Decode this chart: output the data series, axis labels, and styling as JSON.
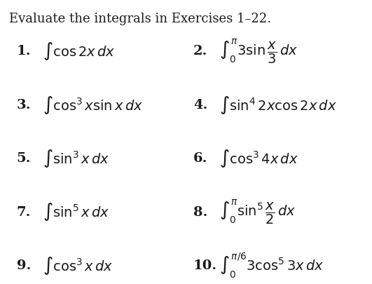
{
  "title": "Evaluate the integrals in Exercises 1–22.",
  "background_color": "#ffffff",
  "text_color": "#1a1a1a",
  "items": [
    {
      "num": "1.",
      "expr": "$\\int \\cos 2x\\, dx$",
      "col": 0,
      "row": 0
    },
    {
      "num": "2.",
      "expr": "$\\int_0^{\\pi} 3 \\sin \\dfrac{x}{3}\\, dx$",
      "col": 1,
      "row": 0
    },
    {
      "num": "3.",
      "expr": "$\\int \\cos^3 x \\sin x\\, dx$",
      "col": 0,
      "row": 1
    },
    {
      "num": "4.",
      "expr": "$\\int \\sin^4 2x \\cos 2x\\, dx$",
      "col": 1,
      "row": 1
    },
    {
      "num": "5.",
      "expr": "$\\int \\sin^3 x\\, dx$",
      "col": 0,
      "row": 2
    },
    {
      "num": "6.",
      "expr": "$\\int \\cos^3 4x\\, dx$",
      "col": 1,
      "row": 2
    },
    {
      "num": "7.",
      "expr": "$\\int \\sin^5 x\\, dx$",
      "col": 0,
      "row": 3
    },
    {
      "num": "8.",
      "expr": "$\\int_0^{\\pi} \\sin^5 \\dfrac{x}{2}\\, dx$",
      "col": 1,
      "row": 3
    },
    {
      "num": "9.",
      "expr": "$\\int \\cos^3 x\\, dx$",
      "col": 0,
      "row": 4
    },
    {
      "num": "10.",
      "expr": "$\\int_0^{\\pi/6} 3 \\cos^5 3x\\, dx$",
      "col": 1,
      "row": 4
    }
  ],
  "title_fontsize": 13,
  "num_fontsize": 14,
  "expr_fontsize": 14,
  "figsize": [
    5.31,
    4.05
  ],
  "dpi": 100
}
